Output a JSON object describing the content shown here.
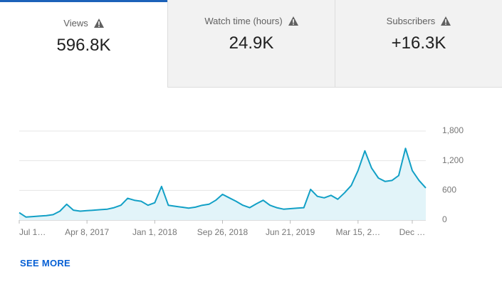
{
  "tabs": [
    {
      "label": "Views",
      "value": "596.8K"
    },
    {
      "label": "Watch time (hours)",
      "value": "24.9K"
    },
    {
      "label": "Subscribers",
      "value": "+16.3K"
    }
  ],
  "link": "SEE MORE",
  "chart_data": {
    "type": "line",
    "categories": [
      "Jul 1…",
      null,
      null,
      null,
      null,
      null,
      null,
      null,
      null,
      null,
      "Apr 8, 2017",
      null,
      null,
      null,
      null,
      null,
      null,
      null,
      null,
      null,
      "Jan 1, 2018",
      null,
      null,
      null,
      null,
      null,
      null,
      null,
      null,
      null,
      "Sep 26, 2018",
      null,
      null,
      null,
      null,
      null,
      null,
      null,
      null,
      null,
      "Jun 21, 2019",
      null,
      null,
      null,
      null,
      null,
      null,
      null,
      null,
      null,
      "Mar 15, 2…",
      null,
      null,
      null,
      null,
      null,
      null,
      null,
      "Dec …",
      null,
      null
    ],
    "series": [
      {
        "color": "#12a0c6",
        "values": [
          150,
          60,
          70,
          80,
          90,
          110,
          180,
          320,
          200,
          180,
          190,
          200,
          210,
          220,
          250,
          300,
          440,
          400,
          380,
          300,
          350,
          680,
          300,
          280,
          260,
          240,
          260,
          300,
          320,
          400,
          520,
          450,
          380,
          300,
          250,
          330,
          400,
          300,
          250,
          220,
          230,
          240,
          250,
          620,
          480,
          450,
          500,
          420,
          550,
          700,
          1000,
          1400,
          1050,
          850,
          780,
          800,
          900,
          1450,
          1000,
          800,
          650
        ]
      }
    ],
    "ylim": [
      0,
      1800
    ],
    "yticks": [
      0,
      600,
      {
        "value": 1200,
        "label": "1,200"
      },
      {
        "value": 1800,
        "label": "1,800"
      }
    ],
    "grid": true,
    "area": true
  }
}
